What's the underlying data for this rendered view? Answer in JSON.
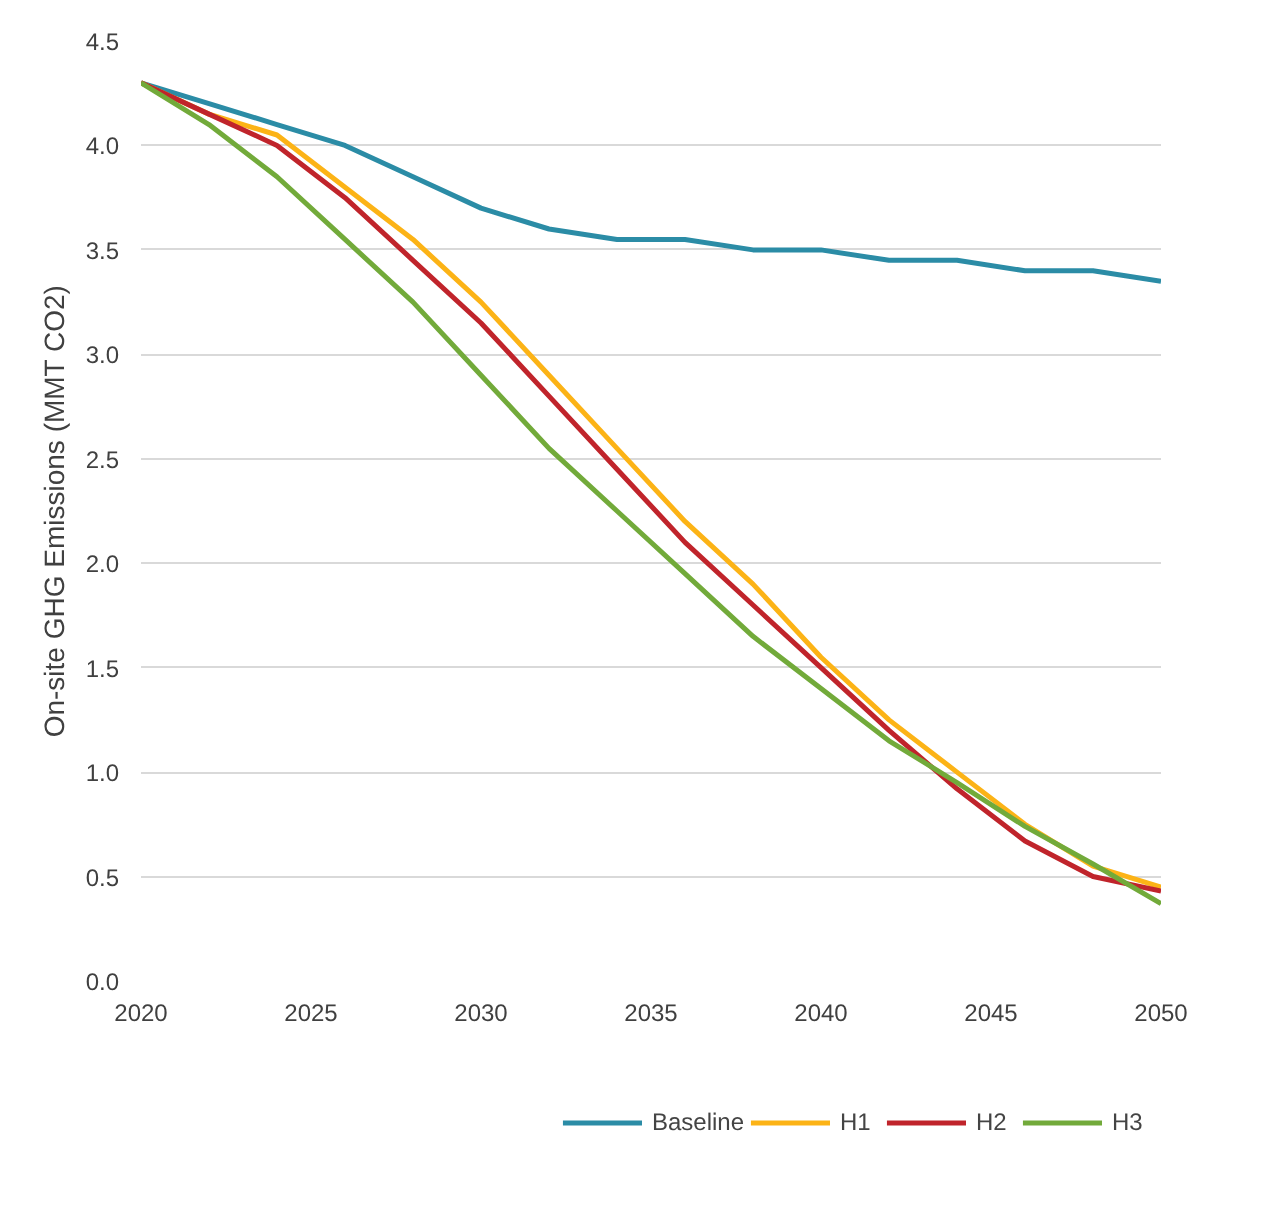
{
  "chart_data": {
    "type": "line",
    "ylabel": "On-site GHG Emissions (MMT CO2)",
    "x": [
      2020,
      2022,
      2024,
      2026,
      2028,
      2030,
      2032,
      2034,
      2036,
      2038,
      2040,
      2042,
      2044,
      2046,
      2048,
      2050
    ],
    "xlim": [
      2020,
      2050
    ],
    "xticks": [
      2020,
      2025,
      2030,
      2035,
      2040,
      2045,
      2050
    ],
    "ylim": [
      0,
      4.5
    ],
    "yticks": [
      {
        "value": 0,
        "label": "0.0"
      },
      0.5,
      {
        "value": 1,
        "label": "1.0"
      },
      1.5,
      {
        "value": 2,
        "label": "2.0"
      },
      2.5,
      {
        "value": 3,
        "label": "3.0"
      },
      3.5,
      {
        "value": 4,
        "label": "4.0"
      },
      4.5
    ],
    "grid": "y",
    "legend": "bottom",
    "marker": "none",
    "line_style": "solid",
    "series": [
      {
        "name": "Baseline",
        "color": "#2b8ca6",
        "values": [
          4.3,
          4.2,
          4.1,
          4.0,
          3.85,
          3.7,
          3.6,
          3.55,
          3.55,
          3.5,
          3.5,
          3.45,
          3.45,
          3.4,
          3.4,
          3.35
        ]
      },
      {
        "name": "H1",
        "color": "#fcb316",
        "values": [
          4.3,
          4.15,
          4.05,
          3.8,
          3.55,
          3.25,
          2.9,
          2.55,
          2.2,
          1.9,
          1.55,
          1.25,
          1.0,
          0.75,
          0.55,
          0.45
        ]
      },
      {
        "name": "H2",
        "color": "#c0242b",
        "values": [
          4.3,
          4.15,
          4.0,
          3.75,
          3.45,
          3.15,
          2.8,
          2.45,
          2.1,
          1.8,
          1.5,
          1.2,
          0.92,
          0.67,
          0.5,
          0.43
        ]
      },
      {
        "name": "H3",
        "color": "#72aa3a",
        "values": [
          4.3,
          4.1,
          3.85,
          3.55,
          3.25,
          2.9,
          2.55,
          2.25,
          1.95,
          1.65,
          1.4,
          1.15,
          0.95,
          0.74,
          0.56,
          0.37
        ]
      }
    ]
  }
}
